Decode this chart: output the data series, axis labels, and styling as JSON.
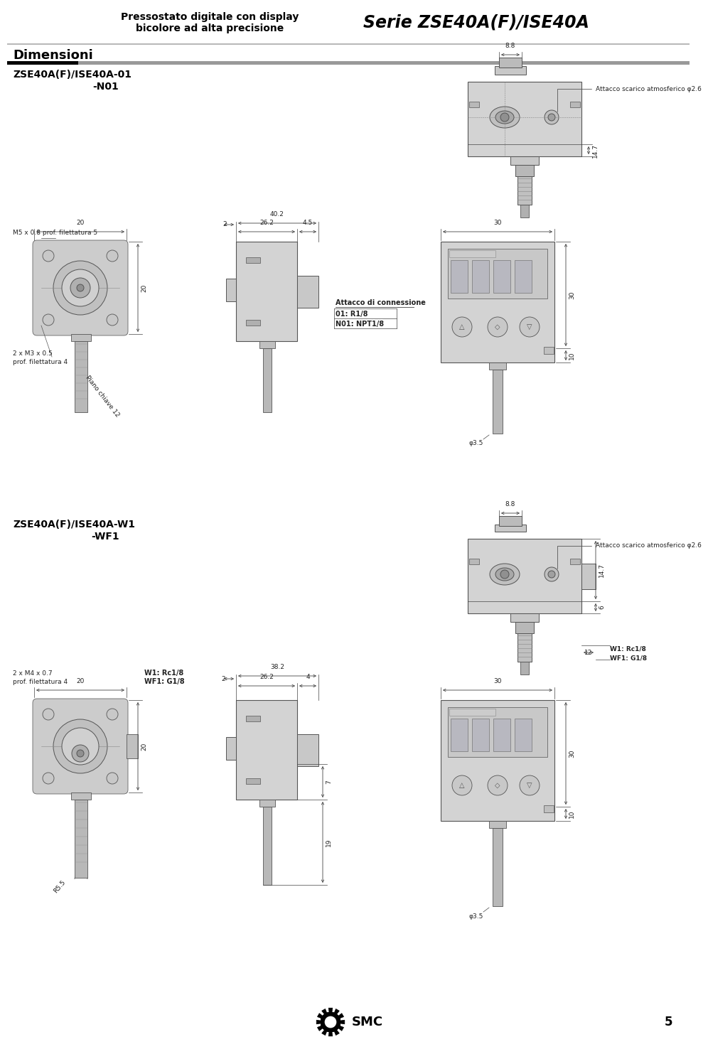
{
  "bg_color": "#ffffff",
  "title_left": "Pressostato digitale con display\nbicolore ad alta precisione",
  "title_right": "Serie ZSE40A(F)/ISE40A",
  "section1_label": "Dimensioni",
  "section1_model": "ZSE40A(F)/ISE40A-01",
  "section1_model2": "-N01",
  "section2_model": "ZSE40A(F)/ISE40A-W1",
  "section2_model2": "-WF1",
  "atm_label": "Attacco scarico atmosferico φ2.6",
  "m5_label": "M5 x 0.8 prof. filettatura 5",
  "m3_label1": "2 x M3 x 0.5",
  "m3_label2": "prof. filettatura 4",
  "chiave_label": "Piano chiave 12",
  "connessione_label": "Attacco di connessione",
  "conn_01": "01: R1/8",
  "conn_n01": "N01: NPT1/8",
  "m4_label1": "2 x M4 x 0.7",
  "m4_label2": "prof. filettatura 4",
  "w1_label": "W1: Rc1/8",
  "wf1_label": "WF1: G1/8",
  "w1_side_label1": "W1: Rc1/8",
  "w1_side_label2": "WF1: G1/8",
  "dim_phi3_5": "φ3.5",
  "dim2_r5_5": "R5.5",
  "page_num": "5"
}
